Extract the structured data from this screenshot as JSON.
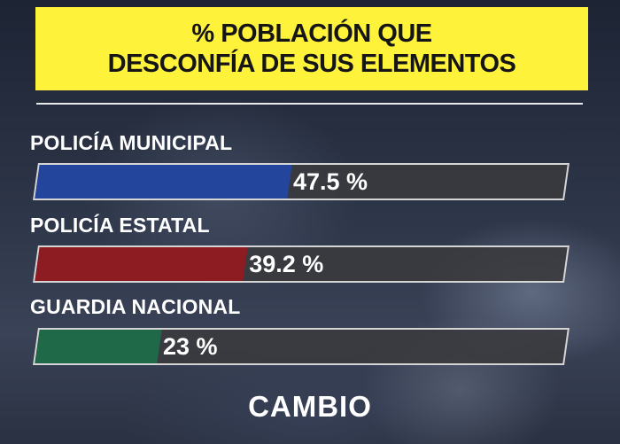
{
  "title_lines": [
    "% POBLACIÓN QUE",
    "DESCONFÍA DE SUS ELEMENTOS"
  ],
  "brand": "CAMBIO",
  "colors": {
    "banner": "#fff23a",
    "series": [
      "#23469c",
      "#8c1c22",
      "#1f6848"
    ],
    "track": "#3a3a3e"
  },
  "chart_data": {
    "type": "bar",
    "orientation": "horizontal",
    "title": "% POBLACIÓN QUE DESCONFÍA DE SUS ELEMENTOS",
    "categories": [
      "POLICÍA MUNICIPAL",
      "POLICÍA ESTATAL",
      "GUARDIA NACIONAL"
    ],
    "values": [
      47.5,
      39.2,
      23
    ],
    "value_labels": [
      "47.5 %",
      "39.2 %",
      "23 %"
    ],
    "xlim": [
      0,
      100
    ],
    "grid": false,
    "legend": "none"
  }
}
